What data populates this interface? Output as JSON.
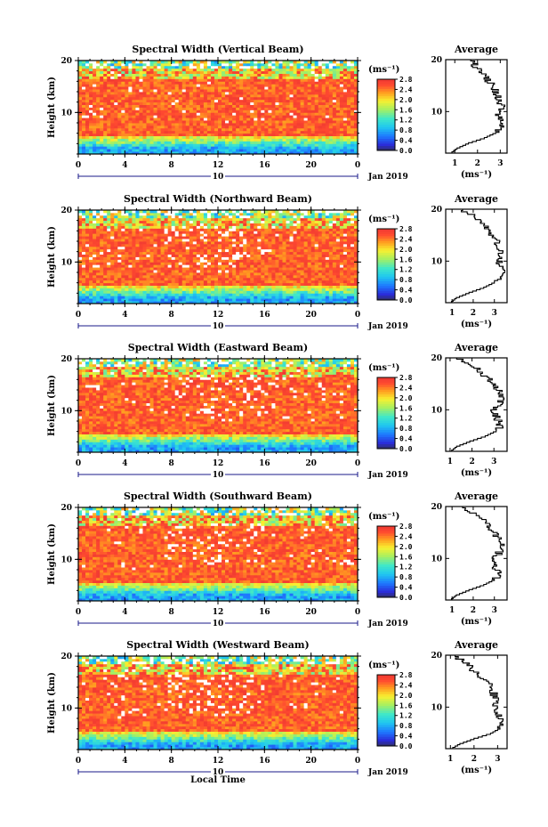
{
  "figure": {
    "xlabel": "Local Time",
    "date_label": "Jan 2019",
    "colorbar_unit": "(ms⁻¹)",
    "avg_title": "Average",
    "avg_xlabel": "(ms⁻¹)",
    "ylabel": "Height (km)"
  },
  "chart_data": [
    {
      "type": "heatmap",
      "title": "Spectral Width (Vertical Beam)",
      "xlabel": "Local Time",
      "ylabel": "Height (km)",
      "xticks": [
        "0",
        "4",
        "8",
        "12",
        "16",
        "20",
        "0"
      ],
      "xlim": [
        0,
        24
      ],
      "day_label": "10",
      "yticks": [
        10,
        20
      ],
      "ylim": [
        2,
        20
      ],
      "colorbar": {
        "unit": "(ms⁻¹)",
        "ticks": [
          "2.8",
          "2.4",
          "2.0",
          "1.6",
          "1.2",
          "0.8",
          "0.4",
          "0.0"
        ],
        "range": [
          0,
          2.8
        ]
      },
      "average_profile": {
        "title": "Average",
        "xlabel": "(ms⁻¹)",
        "xticks": [
          "1",
          "2",
          "3"
        ],
        "xlim": [
          0.6,
          3.3
        ],
        "heights": [
          2,
          3,
          4,
          5,
          6,
          7,
          8,
          9,
          10,
          11,
          12,
          13,
          14,
          15,
          16,
          17,
          18,
          19,
          20
        ],
        "values": [
          0.8,
          1.1,
          1.6,
          2.3,
          2.8,
          3.0,
          3.05,
          3.0,
          2.9,
          3.1,
          3.0,
          2.9,
          2.8,
          2.7,
          2.5,
          2.3,
          2.1,
          1.9,
          1.7
        ]
      }
    },
    {
      "type": "heatmap",
      "title": "Spectral Width (Northward Beam)",
      "xlabel": "Local Time",
      "ylabel": "Height (km)",
      "xticks": [
        "0",
        "4",
        "8",
        "12",
        "16",
        "20",
        "0"
      ],
      "xlim": [
        0,
        24
      ],
      "day_label": "10",
      "yticks": [
        10,
        20
      ],
      "ylim": [
        2,
        20
      ],
      "colorbar": {
        "unit": "(ms⁻¹)",
        "ticks": [
          "2.8",
          "2.4",
          "2.0",
          "1.6",
          "1.2",
          "0.8",
          "0.4",
          "0.0"
        ],
        "range": [
          0,
          2.8
        ]
      },
      "average_profile": {
        "title": "Average",
        "xlabel": "(ms⁻¹)",
        "xticks": [
          "1",
          "2",
          "3"
        ],
        "xlim": [
          0.7,
          3.6
        ],
        "heights": [
          2,
          3,
          4,
          5,
          6,
          7,
          8,
          9,
          10,
          11,
          12,
          13,
          14,
          15,
          16,
          17,
          18,
          19,
          20
        ],
        "values": [
          0.9,
          1.2,
          1.8,
          2.5,
          3.0,
          3.3,
          3.4,
          3.3,
          3.2,
          3.35,
          3.3,
          3.2,
          3.1,
          2.9,
          2.7,
          2.5,
          2.2,
          1.9,
          1.5
        ]
      }
    },
    {
      "type": "heatmap",
      "title": "Spectral Width (Eastward Beam)",
      "xlabel": "Local Time",
      "ylabel": "Height (km)",
      "xticks": [
        "0",
        "4",
        "8",
        "12",
        "16",
        "20",
        "0"
      ],
      "xlim": [
        0,
        24
      ],
      "day_label": "10",
      "yticks": [
        10,
        20
      ],
      "ylim": [
        2,
        20
      ],
      "colorbar": {
        "unit": "(ms⁻¹)",
        "ticks": [
          "2.8",
          "2.4",
          "2.0",
          "1.6",
          "1.2",
          "0.8",
          "0.4",
          "0.0"
        ],
        "range": [
          0,
          2.8
        ]
      },
      "average_profile": {
        "title": "Average",
        "xlabel": "(ms⁻¹)",
        "xticks": [
          "1",
          "2",
          "3"
        ],
        "xlim": [
          0.8,
          3.6
        ],
        "heights": [
          2,
          3,
          4,
          5,
          6,
          7,
          8,
          9,
          10,
          11,
          12,
          13,
          14,
          15,
          16,
          17,
          18,
          19,
          20
        ],
        "values": [
          1.0,
          1.3,
          1.9,
          2.6,
          3.1,
          3.3,
          3.2,
          3.1,
          3.0,
          3.2,
          3.3,
          3.4,
          3.2,
          3.0,
          2.8,
          2.5,
          2.2,
          1.8,
          1.3
        ]
      }
    },
    {
      "type": "heatmap",
      "title": "Spectral Width (Southward Beam)",
      "xlabel": "Local Time",
      "ylabel": "Height (km)",
      "xticks": [
        "0",
        "4",
        "8",
        "12",
        "16",
        "20",
        "0"
      ],
      "xlim": [
        0,
        24
      ],
      "day_label": "10",
      "yticks": [
        10,
        20
      ],
      "ylim": [
        2,
        20
      ],
      "colorbar": {
        "unit": "(ms⁻¹)",
        "ticks": [
          "2.8",
          "2.4",
          "2.0",
          "1.6",
          "1.2",
          "0.8",
          "0.4",
          "0.0"
        ],
        "range": [
          0,
          2.8
        ]
      },
      "average_profile": {
        "title": "Average",
        "xlabel": "(ms⁻¹)",
        "xticks": [
          "1",
          "2",
          "3"
        ],
        "xlim": [
          0.7,
          3.6
        ],
        "heights": [
          2,
          3,
          4,
          5,
          6,
          7,
          8,
          9,
          10,
          11,
          12,
          13,
          14,
          15,
          16,
          17,
          18,
          19,
          20
        ],
        "values": [
          0.9,
          1.2,
          1.8,
          2.5,
          3.0,
          3.2,
          3.1,
          3.0,
          3.0,
          3.2,
          3.3,
          3.4,
          3.2,
          3.0,
          2.8,
          2.6,
          2.3,
          1.9,
          1.5
        ]
      }
    },
    {
      "type": "heatmap",
      "title": "Spectral Width (Westward Beam)",
      "xlabel": "Local Time",
      "ylabel": "Height (km)",
      "xticks": [
        "0",
        "4",
        "8",
        "12",
        "16",
        "20",
        "0"
      ],
      "xlim": [
        0,
        24
      ],
      "day_label": "10",
      "yticks": [
        10,
        20
      ],
      "ylim": [
        2,
        20
      ],
      "colorbar": {
        "unit": "(ms⁻¹)",
        "ticks": [
          "2.8",
          "2.4",
          "2.0",
          "1.6",
          "1.2",
          "0.8",
          "0.4",
          "0.0"
        ],
        "range": [
          0,
          2.8
        ]
      },
      "average_profile": {
        "title": "Average",
        "xlabel": "(ms⁻¹)",
        "xticks": [
          "1",
          "2",
          "3"
        ],
        "xlim": [
          0.8,
          3.4
        ],
        "heights": [
          2,
          3,
          4,
          5,
          6,
          7,
          8,
          9,
          10,
          11,
          12,
          13,
          14,
          15,
          16,
          17,
          18,
          19,
          20
        ],
        "values": [
          1.0,
          1.4,
          2.0,
          2.7,
          3.1,
          3.2,
          3.1,
          3.0,
          2.9,
          3.0,
          2.9,
          2.8,
          2.7,
          2.6,
          2.3,
          2.0,
          1.8,
          1.5,
          1.2
        ]
      }
    }
  ]
}
